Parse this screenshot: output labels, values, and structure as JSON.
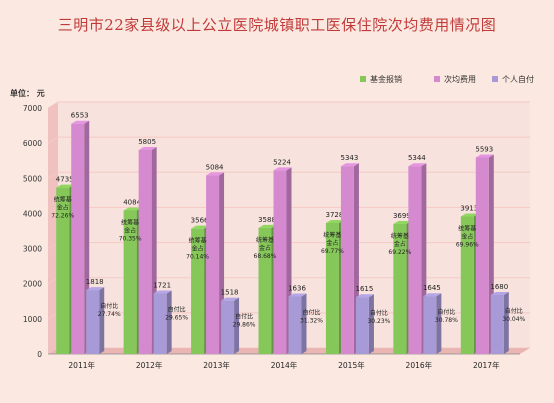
{
  "title": "三明市22家县级以上公立医院城镇职工医保住院次均费用情况图",
  "unit_label": "单位：  元",
  "colors": {
    "fund": "#86c75a",
    "avg": "#d58ad0",
    "self": "#a89ad6",
    "grid": "#f5c9c4",
    "title": "#c13a3a"
  },
  "chart_data": {
    "type": "bar",
    "categories": [
      "2011年",
      "2012年",
      "2013年",
      "2014年",
      "2015年",
      "2016年",
      "2017年"
    ],
    "series": [
      {
        "name": "基金报销",
        "values": [
          4735,
          4084,
          3566,
          3588,
          3728,
          3699,
          3913
        ]
      },
      {
        "name": "次均费用",
        "values": [
          6553,
          5805,
          5084,
          5224,
          5343,
          5344,
          5593
        ]
      },
      {
        "name": "个人自付",
        "values": [
          1818,
          1721,
          1518,
          1636,
          1615,
          1645,
          1680
        ]
      }
    ],
    "value_labels": {
      "fund": [
        "4735",
        "4084",
        "3566",
        "3588",
        "3728",
        "3699",
        "3913"
      ],
      "avg": [
        "6553",
        "5805",
        "5084",
        "5224",
        "5343",
        "5344",
        "5593"
      ],
      "self": [
        "1818",
        "1721",
        "1518",
        "1636",
        "1615",
        "1645",
        "1680"
      ]
    },
    "fund_annotations": [
      [
        "统筹基",
        "金占",
        "72.26%"
      ],
      [
        "统筹基",
        "金占",
        "70.35%"
      ],
      [
        "统筹基",
        "金占",
        "70.14%"
      ],
      [
        "统筹基",
        "金占",
        "68.68%"
      ],
      [
        "统筹基",
        "金占",
        "69.77%"
      ],
      [
        "统筹基",
        "金占",
        "69.22%"
      ],
      [
        "统筹基",
        "金占",
        "69.96%"
      ]
    ],
    "self_annotations": [
      [
        "自付比",
        "27.74%"
      ],
      [
        "自付比",
        "29.65%"
      ],
      [
        "自付比",
        "29.86%"
      ],
      [
        "自付比",
        "31.32%"
      ],
      [
        "自付比",
        "30.23%"
      ],
      [
        "自付比",
        "30.78%"
      ],
      [
        "自付比",
        "30.04%"
      ]
    ],
    "yticks": [
      "0",
      "1000",
      "2000",
      "3000",
      "4000",
      "5000",
      "6000",
      "7000"
    ],
    "ylim": [
      0,
      7000
    ],
    "grid": true,
    "legend_position": "top-right"
  }
}
